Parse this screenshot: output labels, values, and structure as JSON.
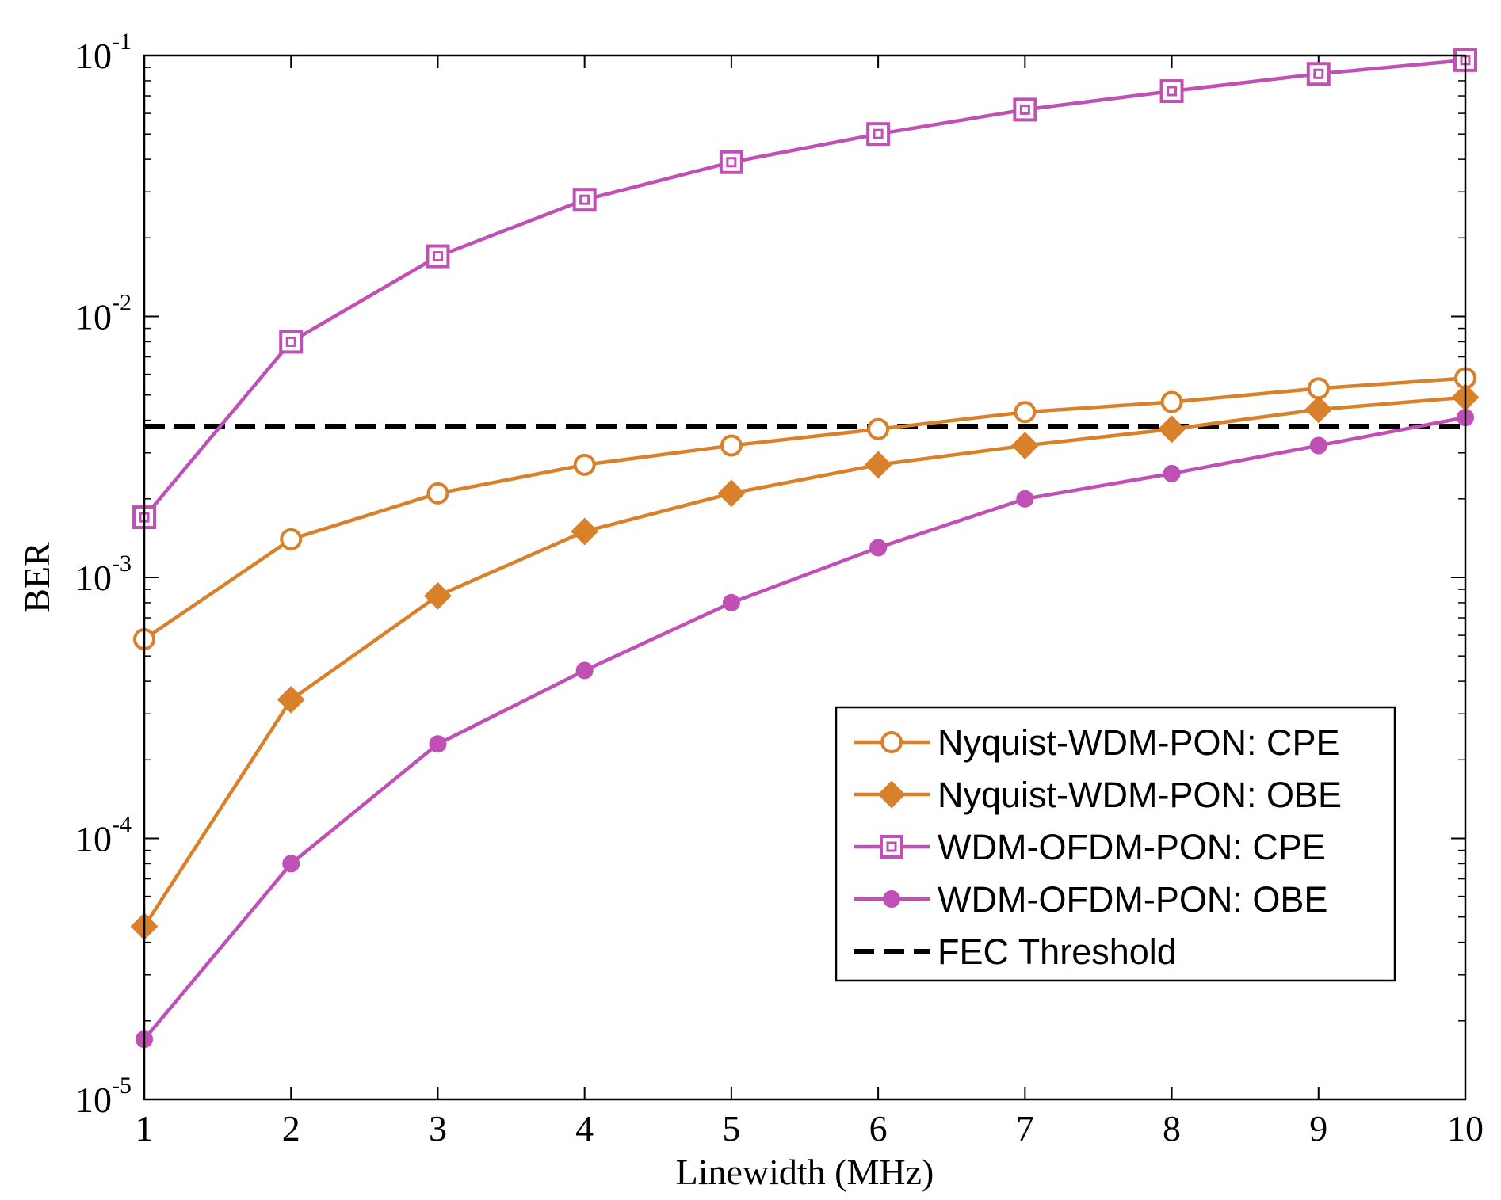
{
  "chart_data": {
    "type": "line",
    "title": "",
    "xlabel": "Linewidth (MHz)",
    "ylabel": "BER",
    "yscale": "log",
    "xlim": [
      1,
      10
    ],
    "ylim": [
      1e-05,
      0.1
    ],
    "x": [
      1,
      2,
      3,
      4,
      5,
      6,
      7,
      8,
      9,
      10
    ],
    "x_ticks": [
      "1",
      "2",
      "3",
      "4",
      "5",
      "6",
      "7",
      "8",
      "9",
      "10"
    ],
    "y_ticks": [
      {
        "base": "10",
        "exp": "-5",
        "value": 1e-05
      },
      {
        "base": "10",
        "exp": "-4",
        "value": 0.0001
      },
      {
        "base": "10",
        "exp": "-3",
        "value": 0.001
      },
      {
        "base": "10",
        "exp": "-2",
        "value": 0.01
      },
      {
        "base": "10",
        "exp": "-1",
        "value": 0.1
      }
    ],
    "legend_position": "lower-right",
    "series": [
      {
        "name": "Nyquist-WDM-PON: CPE",
        "color": "#d9802a",
        "marker": "circle",
        "values": [
          0.00058,
          0.0014,
          0.0021,
          0.0027,
          0.0032,
          0.0037,
          0.0043,
          0.0047,
          0.0053,
          0.0058
        ]
      },
      {
        "name": "Nyquist-WDM-PON: OBE",
        "color": "#d9802a",
        "marker": "diamond",
        "values": [
          4.6e-05,
          0.00034,
          0.00085,
          0.0015,
          0.0021,
          0.0027,
          0.0032,
          0.0037,
          0.0044,
          0.0049
        ]
      },
      {
        "name": "WDM-OFDM-PON: CPE",
        "color": "#c04fb6",
        "marker": "square",
        "values": [
          0.0017,
          0.008,
          0.017,
          0.028,
          0.039,
          0.05,
          0.062,
          0.073,
          0.085,
          0.096
        ]
      },
      {
        "name": "WDM-OFDM-PON: OBE",
        "color": "#c04fb6",
        "marker": "dot",
        "values": [
          1.7e-05,
          8e-05,
          0.00023,
          0.00044,
          0.0008,
          0.0013,
          0.002,
          0.0025,
          0.0032,
          0.0041
        ]
      }
    ],
    "threshold": {
      "name": "FEC Threshold",
      "value": 0.0038,
      "color": "#000000",
      "style": "dashed"
    }
  }
}
